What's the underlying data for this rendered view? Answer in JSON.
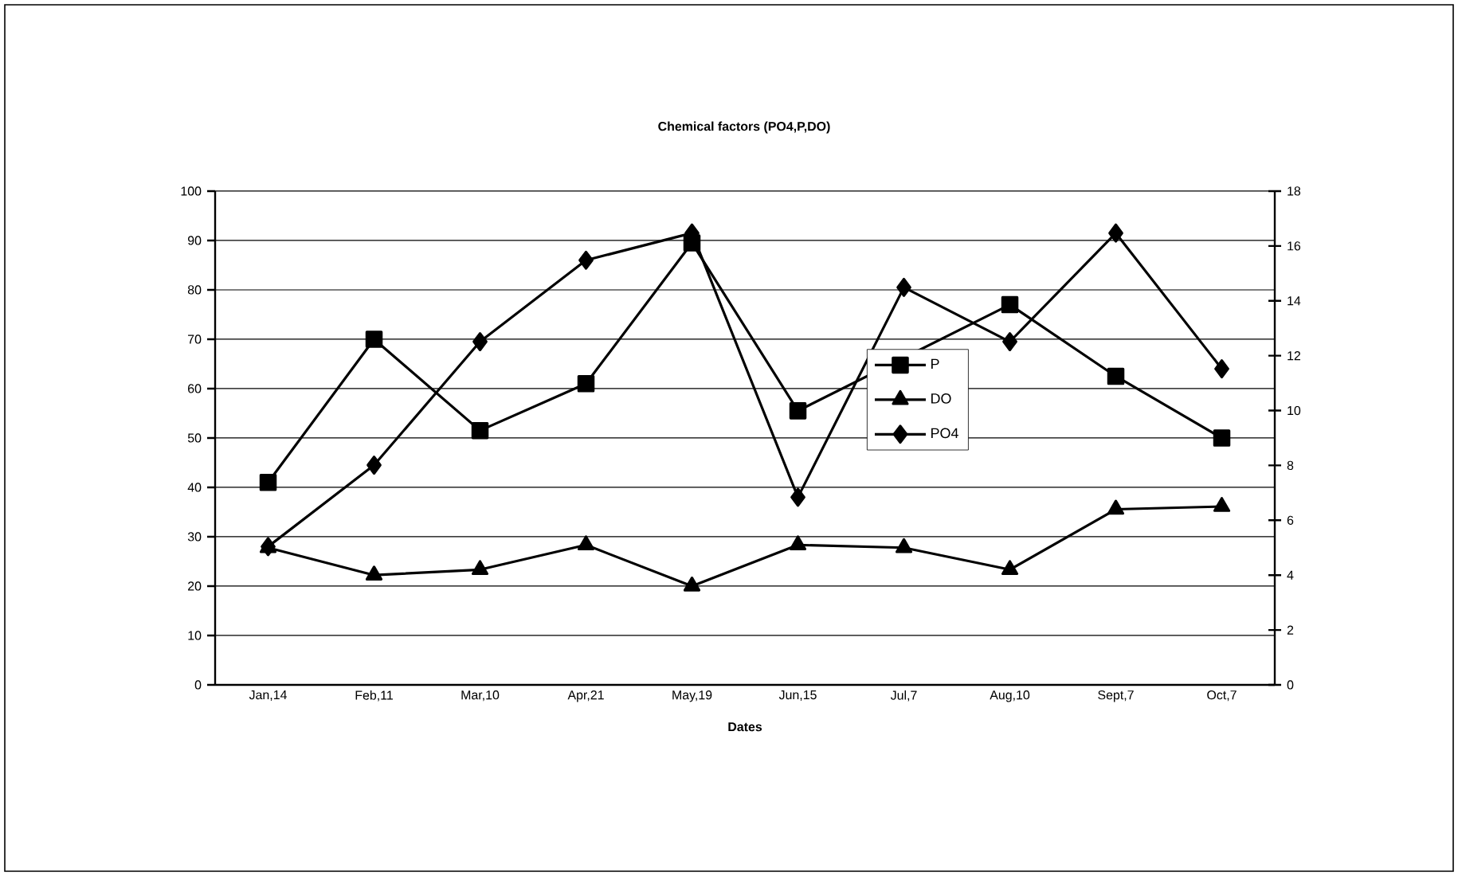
{
  "chart_data": {
    "type": "line",
    "title": "Chemical factors (PO4,P,DO)",
    "xlabel": "Dates",
    "categories": [
      "Jan,14",
      "Feb,11",
      "Mar,10",
      "Apr,21",
      "May,19",
      "Jun,15",
      "Jul,7",
      "Aug,10",
      "Sept,7",
      "Oct,7"
    ],
    "series": [
      {
        "name": "P",
        "color": "#000000",
        "marker": "square",
        "values": [
          41,
          70,
          51.5,
          61,
          89.5,
          55.5,
          null,
          77,
          62.5,
          50
        ]
      },
      {
        "name": "DO",
        "color": "#000000",
        "marker": "triangle",
        "axis": "y2",
        "values": [
          5.0,
          4.0,
          4.2,
          5.1,
          3.6,
          5.1,
          5.0,
          4.2,
          6.4,
          6.5
        ]
      },
      {
        "name": "PO4",
        "color": "#000000",
        "marker": "diamond",
        "values": [
          28,
          44.5,
          69.5,
          86,
          91.5,
          38,
          80.5,
          69.5,
          91.5,
          64
        ]
      }
    ],
    "ylim": [
      0,
      100
    ],
    "yticks": [
      0,
      10,
      20,
      30,
      40,
      50,
      60,
      70,
      80,
      90,
      100
    ],
    "y2lim": [
      0,
      18
    ],
    "y2ticks": [
      0,
      2,
      4,
      6,
      8,
      10,
      12,
      14,
      16,
      18
    ],
    "grid": "y",
    "legend": "center",
    "line_style": "solid"
  }
}
